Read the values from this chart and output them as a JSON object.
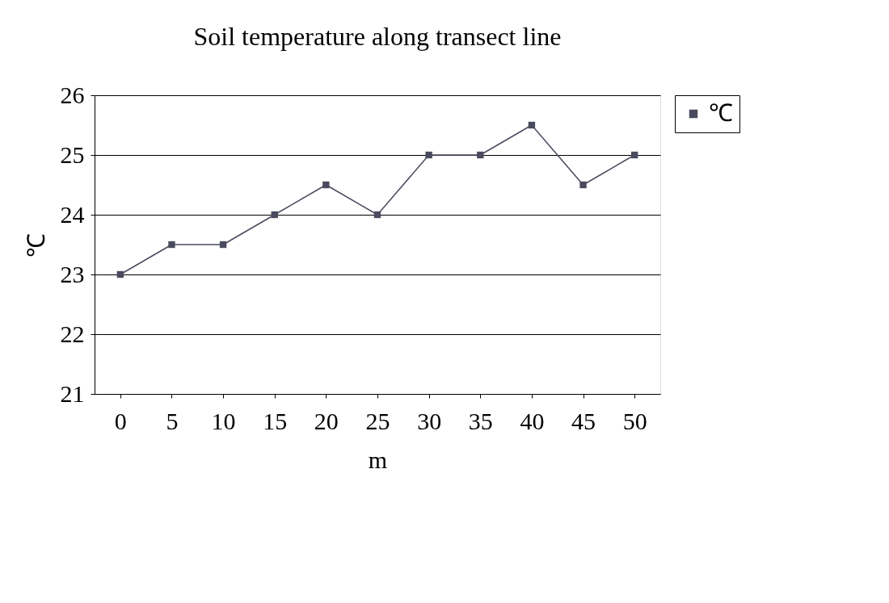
{
  "chart_data": {
    "type": "line",
    "title": "Soil temperature along transect line",
    "xlabel": "m",
    "ylabel": "℃",
    "categories": [
      "0",
      "5",
      "10",
      "15",
      "20",
      "25",
      "30",
      "35",
      "40",
      "45",
      "50"
    ],
    "series": [
      {
        "name": "℃",
        "color": "#4a4a5e",
        "values": [
          23,
          23.5,
          23.5,
          24,
          24.5,
          24,
          25,
          25,
          25.5,
          24.5,
          25
        ]
      }
    ],
    "ylim": [
      21,
      26
    ],
    "yticks": [
      21,
      22,
      23,
      24,
      25,
      26
    ],
    "grid": "y",
    "legend": "right",
    "marker": "square",
    "line_style": "solid"
  }
}
